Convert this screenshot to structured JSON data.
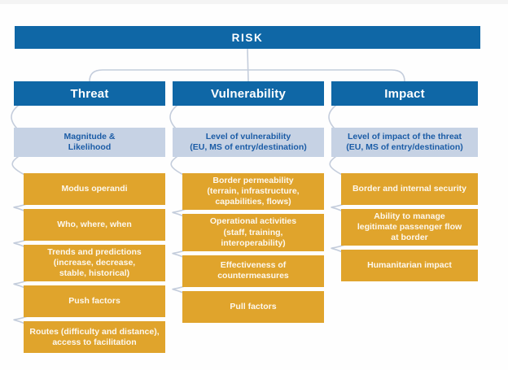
{
  "root": {
    "label": "RISK"
  },
  "colors": {
    "header_blue": "#0f67a6",
    "subtitle_blue": "#c6d2e4",
    "subtitle_text": "#1b5ca6",
    "node_orange": "#e0a42c",
    "node_text": "#fdf8ee",
    "connector": "#c4cddc"
  },
  "columns": [
    {
      "title": "Threat",
      "subtitle": "Magnitude &\nLikelihood",
      "items": [
        "Modus operandi",
        "Who, where, when",
        "Trends and predictions\n(increase, decrease,\nstable, historical)",
        "Push factors",
        "Routes (difficulty and distance),\naccess to facilitation"
      ]
    },
    {
      "title": "Vulnerability",
      "subtitle": "Level of vulnerability\n(EU, MS of entry/destination)",
      "items": [
        "Border permeability\n(terrain, infrastructure,\ncapabilities, flows)",
        "Operational activities\n(staff, training,\ninteroperability)",
        "Effectiveness of\ncountermeasures",
        "Pull factors"
      ]
    },
    {
      "title": "Impact",
      "subtitle": "Level of impact of the threat\n(EU, MS of entry/destination)",
      "items": [
        "Border and internal security",
        "Ability to manage\nlegitimate passenger flow\nat border",
        "Humanitarian impact"
      ]
    }
  ]
}
